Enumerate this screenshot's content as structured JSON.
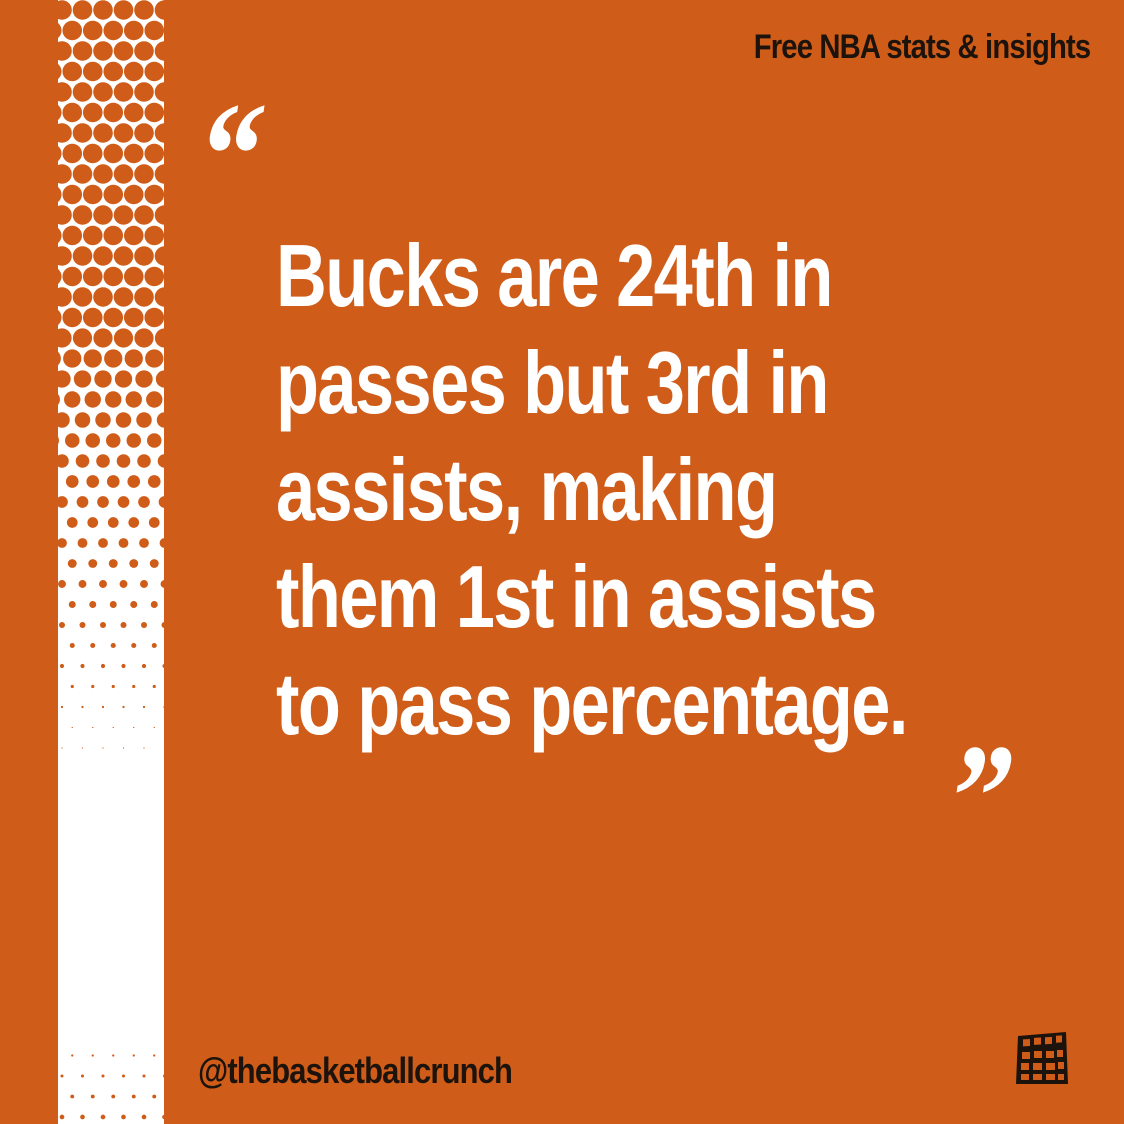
{
  "header": {
    "tagline": "Free NBA stats & insights"
  },
  "quote": {
    "open_mark": "“",
    "close_mark": "”",
    "lines": [
      "Bucks are 24th in",
      "passes but 3rd in",
      "assists, making",
      "them 1st in assists",
      "to pass percentage."
    ]
  },
  "footer": {
    "handle": "@thebasketballcrunch",
    "logo_icon": "basketball-net-icon"
  },
  "colors": {
    "background": "#cf5c18",
    "text_light": "#ffffff",
    "text_dark": "#1c130d"
  }
}
